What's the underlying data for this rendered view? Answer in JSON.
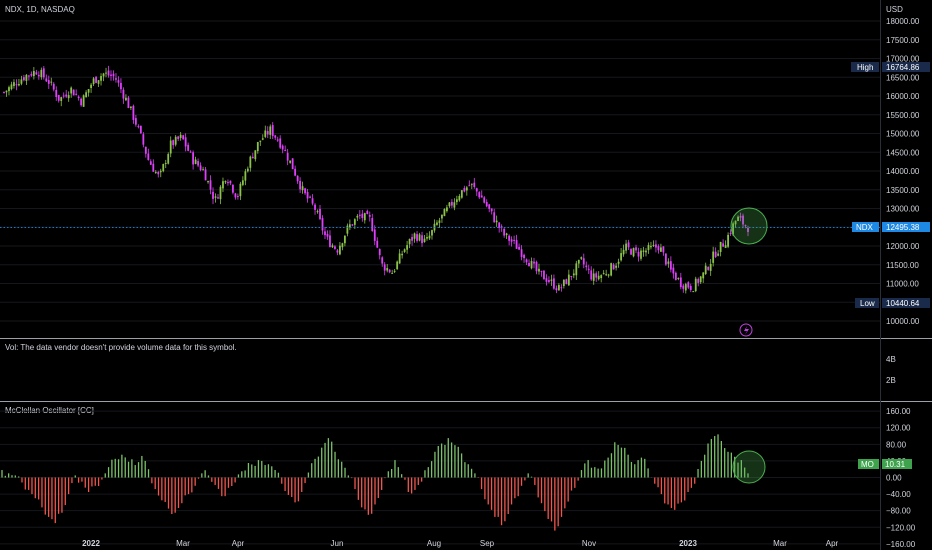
{
  "header": {
    "symbol_line": "NDX, 1D, NASDAQ",
    "currency": "USD"
  },
  "colors": {
    "up": "#8bc34a",
    "down": "#e040fb",
    "hist_pos": "#7cc26a",
    "hist_neg": "#f0564d",
    "tag_blue": "#1e88e5",
    "tag_dark": "#1a2a4a",
    "tag_green": "#3fa34d",
    "separator": "#9aa0a6"
  },
  "chart_data": [
    {
      "type": "candlestick",
      "title": "NDX, 1D, NASDAQ",
      "ylabel": "USD",
      "ylim": [
        9700,
        18200
      ],
      "y_ticks": [
        "18000.00",
        "17500.00",
        "17000.00",
        "16500.00",
        "16000.00",
        "15500.00",
        "15000.00",
        "14500.00",
        "14000.00",
        "13500.00",
        "13000.00",
        "12500.00",
        "12000.00",
        "11500.00",
        "11000.00",
        "10500.00",
        "10000.00"
      ],
      "x_ticks": [
        "2022",
        "Mar",
        "Apr",
        "Jun",
        "Aug",
        "Sep",
        "Nov",
        "2023",
        "Mar",
        "Apr"
      ],
      "current": {
        "label": "NDX",
        "value": "12495.38"
      },
      "high": {
        "label": "High",
        "value": "16764.86"
      },
      "low": {
        "label": "Low",
        "value": "10440.64"
      },
      "closes": [
        16100,
        16350,
        16550,
        16680,
        16400,
        15900,
        16200,
        15850,
        16400,
        16600,
        16500,
        15900,
        15200,
        14300,
        13800,
        14700,
        14900,
        14300,
        14000,
        13200,
        13900,
        13300,
        14200,
        14800,
        15100,
        14700,
        14100,
        13400,
        13000,
        12200,
        11900,
        12500,
        12800,
        12700,
        11500,
        11300,
        11900,
        12300,
        12100,
        12600,
        13000,
        13400,
        13650,
        13300,
        12800,
        12300,
        12050,
        11700,
        11300,
        11100,
        10850,
        11200,
        11600,
        11150,
        11250,
        11500,
        11950,
        11800,
        11900,
        12000,
        11350,
        11000,
        10900,
        11250,
        11800,
        12150,
        12750,
        12500
      ]
    },
    {
      "type": "volume",
      "title": "Vol: The data vendor doesn't provide volume data for this symbol.",
      "y_ticks": [
        "4B",
        "2B"
      ]
    },
    {
      "type": "bar",
      "title": "McClellan Oscillator [CC]",
      "ylim": [
        -170,
        170
      ],
      "y_ticks": [
        "160.00",
        "120.00",
        "80.00",
        "40.00",
        "0.00",
        "−40.00",
        "−80.00",
        "−120.00",
        "−160.00"
      ],
      "current": {
        "label": "MO",
        "value": "10.31"
      },
      "values": [
        18,
        10,
        5,
        -12,
        -30,
        -50,
        -72,
        -95,
        -110,
        -85,
        -40,
        5,
        -10,
        -35,
        -20,
        -5,
        25,
        45,
        55,
        38,
        30,
        52,
        20,
        -28,
        -55,
        -75,
        -85,
        -62,
        -40,
        -20,
        10,
        5,
        -18,
        -45,
        -25,
        -12,
        15,
        35,
        28,
        40,
        32,
        18,
        -15,
        -42,
        -60,
        -35,
        12,
        45,
        72,
        95,
        62,
        38,
        5,
        -28,
        -72,
        -90,
        -65,
        -30,
        15,
        42,
        8,
        -35,
        -30,
        -10,
        25,
        62,
        82,
        95,
        78,
        58,
        32,
        10,
        -28,
        -65,
        -95,
        -115,
        -88,
        -50,
        -20,
        10,
        -18,
        -62,
        -100,
        -128,
        -95,
        -58,
        -25,
        18,
        42,
        25,
        22,
        48,
        85,
        72,
        55,
        32,
        48,
        22,
        -15,
        -40,
        -65,
        -78,
        -60,
        -35,
        -15,
        40,
        82,
        100,
        88,
        62,
        50,
        42,
        10
      ]
    }
  ]
}
